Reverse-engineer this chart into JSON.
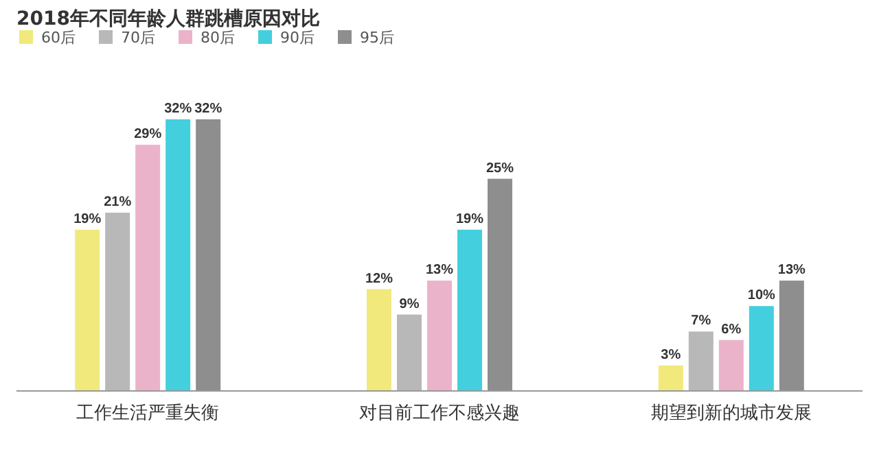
{
  "chart_data": {
    "type": "bar",
    "title": "2018年不同年龄人群跳槽原因对比",
    "categories": [
      "工作生活严重失衡",
      "对目前工作不感兴趣",
      "期望到新的城市发展"
    ],
    "series": [
      {
        "name": "60后",
        "color": "#f1e97c",
        "values": [
          19,
          12,
          3
        ],
        "value_labels": [
          "19%",
          "12%",
          "3%"
        ]
      },
      {
        "name": "70后",
        "color": "#b8b8b8",
        "values": [
          21,
          9,
          7
        ],
        "value_labels": [
          "21%",
          "9%",
          "7%"
        ]
      },
      {
        "name": "80后",
        "color": "#ebb3c9",
        "values": [
          29,
          13,
          6
        ],
        "value_labels": [
          "29%",
          "13%",
          "6%"
        ]
      },
      {
        "name": "90后",
        "color": "#43cfdd",
        "values": [
          32,
          19,
          10
        ],
        "value_labels": [
          "32%",
          "19%",
          "10%"
        ]
      },
      {
        "name": "95后",
        "color": "#8e8e8e",
        "values": [
          32,
          25,
          13
        ],
        "value_labels": [
          "32%",
          "25%",
          "13%"
        ]
      }
    ],
    "legend": "top left"
  }
}
